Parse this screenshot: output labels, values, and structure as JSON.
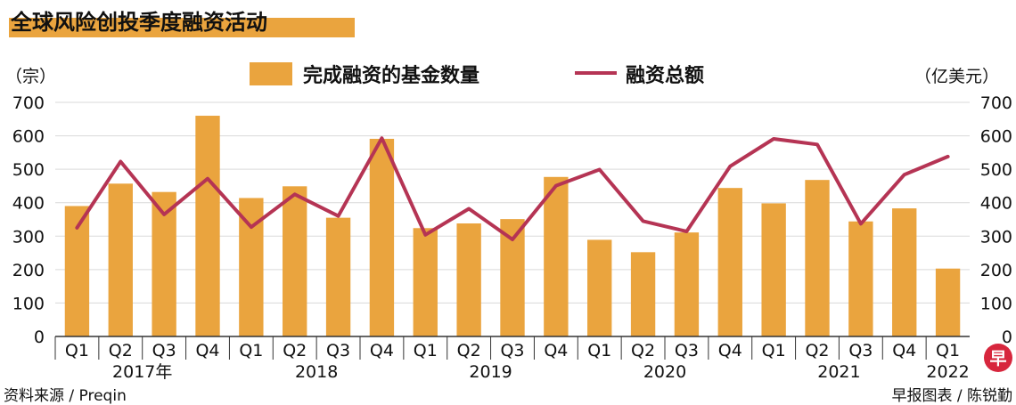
{
  "chart_data": {
    "type": "bar+line",
    "title": "全球风险创投季度融资活动",
    "ylabel_left": "（宗）",
    "ylabel_right": "（亿美元）",
    "ylim": [
      0,
      700
    ],
    "yticks": [
      0,
      100,
      200,
      300,
      400,
      500,
      600,
      700
    ],
    "quarter_labels": [
      "Q1",
      "Q2",
      "Q3",
      "Q4",
      "Q1",
      "Q2",
      "Q3",
      "Q4",
      "Q1",
      "Q2",
      "Q3",
      "Q4",
      "Q1",
      "Q2",
      "Q3",
      "Q4",
      "Q1",
      "Q2",
      "Q3",
      "Q4",
      "Q1"
    ],
    "years": [
      {
        "label": "2017年",
        "start": 0,
        "count": 4
      },
      {
        "label": "2018",
        "start": 4,
        "count": 4
      },
      {
        "label": "2019",
        "start": 8,
        "count": 4
      },
      {
        "label": "2020",
        "start": 12,
        "count": 4
      },
      {
        "label": "2021",
        "start": 16,
        "count": 4
      },
      {
        "label": "2022",
        "start": 20,
        "count": 1
      }
    ],
    "series": [
      {
        "name": "完成融资的基金数量",
        "type": "bar",
        "axis": "left",
        "values": [
          390,
          457,
          432,
          660,
          414,
          449,
          355,
          591,
          324,
          338,
          351,
          477,
          289,
          252,
          311,
          444,
          398,
          468,
          344,
          383,
          203
        ]
      },
      {
        "name": "融资总额",
        "type": "line",
        "axis": "right",
        "values": [
          325,
          523,
          365,
          472,
          327,
          425,
          360,
          593,
          304,
          382,
          290,
          451,
          499,
          345,
          314,
          509,
          591,
          574,
          337,
          484,
          538
        ]
      }
    ],
    "colors": {
      "bar": "#EAA43E",
      "line": "#B53454",
      "title_underline": "#EAA43E"
    }
  },
  "source": "资料来源 / Preqin",
  "credit": "早报图表 / 陈锐勤",
  "logo_char": "早"
}
